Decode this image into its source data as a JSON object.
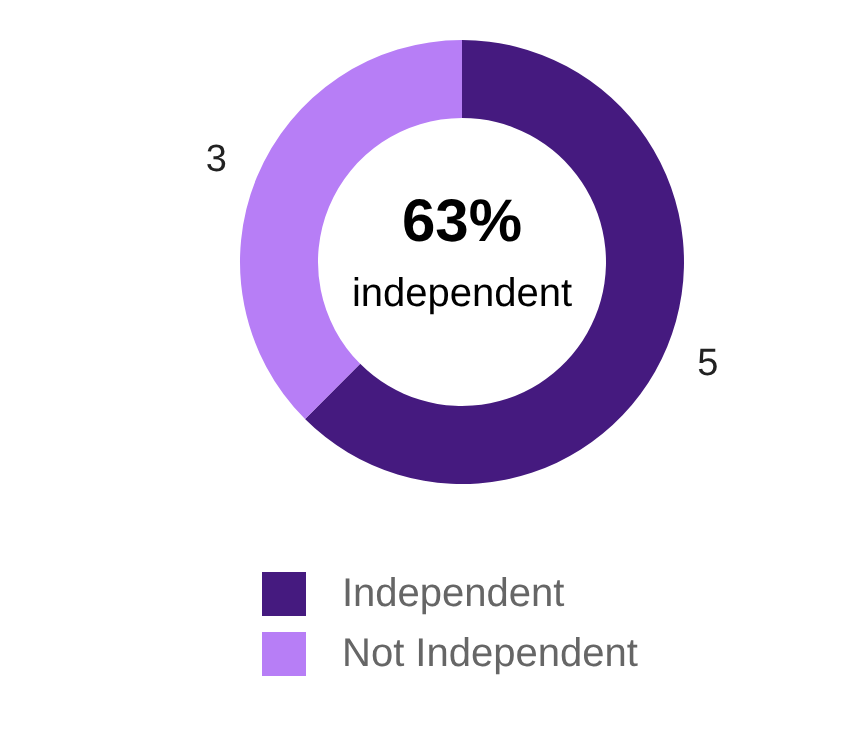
{
  "chart_data": {
    "type": "donut",
    "categories": [
      "Independent",
      "Not Independent"
    ],
    "values": [
      5,
      3
    ],
    "colors": [
      "#451a7f",
      "#b77ef6"
    ],
    "data_labels": true,
    "legend": "bottom",
    "annotations": [
      "63%",
      "independent"
    ]
  }
}
